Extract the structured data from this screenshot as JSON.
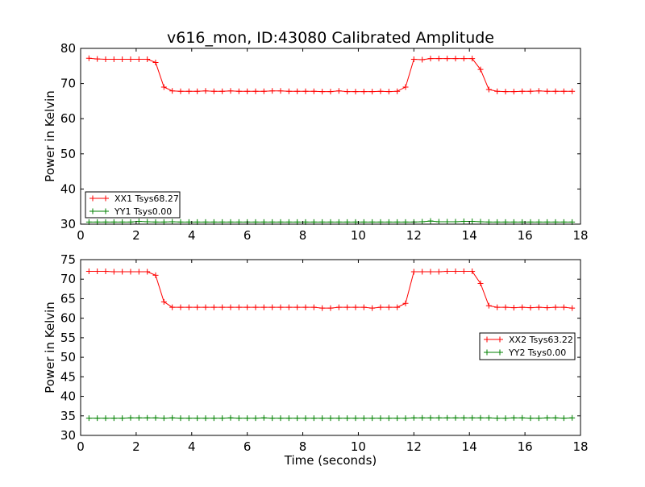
{
  "chart_data": [
    {
      "type": "line",
      "title": "v616_mon, ID:43080 Calibrated Amplitude",
      "xlabel": "",
      "ylabel": "Power in Kelvin",
      "xlim": [
        0,
        18
      ],
      "ylim": [
        30,
        80
      ],
      "xticks": [
        "0",
        "2",
        "4",
        "6",
        "8",
        "10",
        "12",
        "14",
        "16",
        "18"
      ],
      "yticks": [
        "30",
        "40",
        "50",
        "60",
        "70",
        "80"
      ],
      "grid": false,
      "legend": "lower-left",
      "x": [
        0.3,
        0.6,
        0.9,
        1.2,
        1.5,
        1.8,
        2.1,
        2.4,
        2.7,
        3.0,
        3.3,
        3.6,
        3.9,
        4.2,
        4.5,
        4.8,
        5.1,
        5.4,
        5.7,
        6.0,
        6.3,
        6.6,
        6.9,
        7.2,
        7.5,
        7.8,
        8.1,
        8.4,
        8.7,
        9.0,
        9.3,
        9.6,
        9.9,
        10.2,
        10.5,
        10.8,
        11.1,
        11.4,
        11.7,
        12.0,
        12.3,
        12.6,
        12.9,
        13.2,
        13.5,
        13.8,
        14.1,
        14.4,
        14.7,
        15.0,
        15.3,
        15.6,
        15.9,
        16.2,
        16.5,
        16.8,
        17.1,
        17.4,
        17.7
      ],
      "series": [
        {
          "name": "XX1 Tsys68.27",
          "color": "#ff0000",
          "values": [
            77.2,
            77.0,
            76.9,
            76.9,
            76.9,
            76.9,
            76.9,
            76.9,
            76.0,
            69.0,
            67.9,
            67.8,
            67.8,
            67.8,
            67.9,
            67.8,
            67.8,
            67.9,
            67.8,
            67.8,
            67.8,
            67.8,
            67.9,
            67.9,
            67.8,
            67.8,
            67.8,
            67.8,
            67.7,
            67.7,
            67.9,
            67.7,
            67.7,
            67.7,
            67.7,
            67.8,
            67.7,
            67.8,
            69.0,
            76.9,
            76.8,
            77.1,
            77.1,
            77.1,
            77.1,
            77.1,
            77.1,
            74.0,
            68.3,
            67.8,
            67.7,
            67.7,
            67.8,
            67.8,
            67.9,
            67.8,
            67.8,
            67.8,
            67.8
          ]
        },
        {
          "name": "YY1 Tsys0.00",
          "color": "#008000",
          "values": [
            30.6,
            30.6,
            30.6,
            30.6,
            30.6,
            30.6,
            30.8,
            30.7,
            30.6,
            30.6,
            30.7,
            30.6,
            30.6,
            30.6,
            30.6,
            30.6,
            30.6,
            30.6,
            30.6,
            30.6,
            30.6,
            30.6,
            30.6,
            30.6,
            30.6,
            30.6,
            30.6,
            30.6,
            30.6,
            30.6,
            30.6,
            30.6,
            30.6,
            30.6,
            30.6,
            30.6,
            30.6,
            30.6,
            30.6,
            30.6,
            30.7,
            30.9,
            30.7,
            30.7,
            30.7,
            30.8,
            30.8,
            30.7,
            30.6,
            30.6,
            30.6,
            30.6,
            30.6,
            30.6,
            30.6,
            30.6,
            30.6,
            30.6,
            30.6
          ]
        }
      ]
    },
    {
      "type": "line",
      "title": "",
      "xlabel": "Time (seconds)",
      "ylabel": "Power in Kelvin",
      "xlim": [
        0,
        18
      ],
      "ylim": [
        30,
        75
      ],
      "xticks": [
        "0",
        "2",
        "4",
        "6",
        "8",
        "10",
        "12",
        "14",
        "16",
        "18"
      ],
      "yticks": [
        "30",
        "35",
        "40",
        "45",
        "50",
        "55",
        "60",
        "65",
        "70",
        "75"
      ],
      "grid": false,
      "legend": "center-right",
      "x": [
        0.3,
        0.6,
        0.9,
        1.2,
        1.5,
        1.8,
        2.1,
        2.4,
        2.7,
        3.0,
        3.3,
        3.6,
        3.9,
        4.2,
        4.5,
        4.8,
        5.1,
        5.4,
        5.7,
        6.0,
        6.3,
        6.6,
        6.9,
        7.2,
        7.5,
        7.8,
        8.1,
        8.4,
        8.7,
        9.0,
        9.3,
        9.6,
        9.9,
        10.2,
        10.5,
        10.8,
        11.1,
        11.4,
        11.7,
        12.0,
        12.3,
        12.6,
        12.9,
        13.2,
        13.5,
        13.8,
        14.1,
        14.4,
        14.7,
        15.0,
        15.3,
        15.6,
        15.9,
        16.2,
        16.5,
        16.8,
        17.1,
        17.4,
        17.7
      ],
      "series": [
        {
          "name": "XX2 Tsys63.22",
          "color": "#ff0000",
          "values": [
            72.0,
            72.0,
            72.0,
            71.9,
            71.9,
            71.9,
            71.9,
            71.9,
            71.0,
            64.2,
            62.8,
            62.8,
            62.8,
            62.8,
            62.8,
            62.8,
            62.8,
            62.8,
            62.8,
            62.8,
            62.8,
            62.8,
            62.8,
            62.8,
            62.8,
            62.8,
            62.8,
            62.8,
            62.6,
            62.6,
            62.8,
            62.8,
            62.8,
            62.8,
            62.6,
            62.8,
            62.8,
            62.8,
            63.8,
            71.9,
            71.9,
            71.9,
            71.9,
            72.0,
            72.0,
            72.0,
            72.0,
            68.9,
            63.2,
            62.8,
            62.8,
            62.7,
            62.8,
            62.7,
            62.8,
            62.7,
            62.8,
            62.8,
            62.6
          ]
        },
        {
          "name": "YY2 Tsys0.00",
          "color": "#008000",
          "values": [
            34.4,
            34.4,
            34.4,
            34.4,
            34.4,
            34.5,
            34.5,
            34.5,
            34.5,
            34.4,
            34.5,
            34.4,
            34.4,
            34.4,
            34.4,
            34.4,
            34.4,
            34.5,
            34.4,
            34.4,
            34.4,
            34.5,
            34.4,
            34.4,
            34.4,
            34.4,
            34.4,
            34.4,
            34.4,
            34.4,
            34.4,
            34.4,
            34.4,
            34.4,
            34.4,
            34.4,
            34.4,
            34.4,
            34.4,
            34.5,
            34.5,
            34.5,
            34.5,
            34.5,
            34.5,
            34.5,
            34.5,
            34.5,
            34.5,
            34.4,
            34.4,
            34.5,
            34.5,
            34.4,
            34.4,
            34.5,
            34.5,
            34.4,
            34.5
          ]
        }
      ]
    }
  ]
}
